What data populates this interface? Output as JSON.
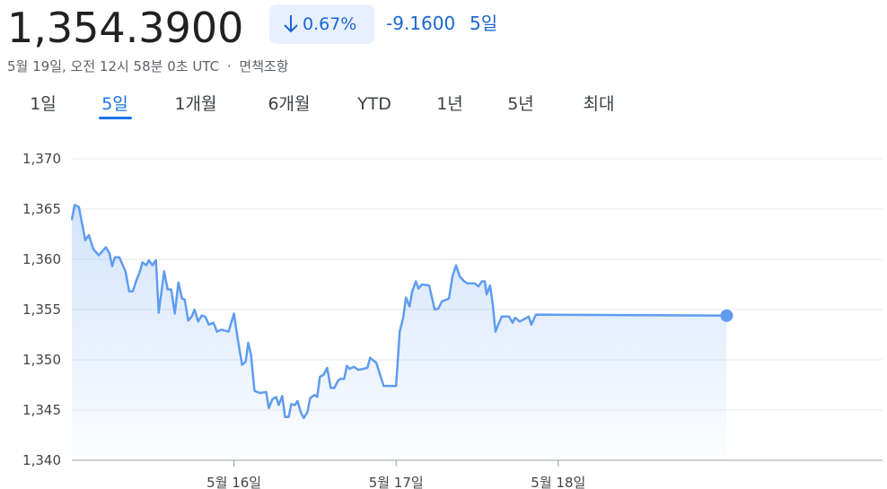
{
  "header": {
    "price": "1,354.3900",
    "change_pct": "0.67%",
    "change": "-9.1600",
    "period": "5일",
    "timestamp": "5월 19일, 오전 12시 58분 0초 UTC",
    "separator": "·",
    "disclaimer": "면책조항"
  },
  "tabs": {
    "items": [
      "1일",
      "5일",
      "1개월",
      "6개월",
      "YTD",
      "1년",
      "5년",
      "최대"
    ],
    "selected": 1
  },
  "chart_data": {
    "type": "line",
    "color": "#5f9cf0",
    "grid": true,
    "xlim": [
      15,
      20
    ],
    "xticks": [
      {
        "value": 16,
        "label": "5월 16일"
      },
      {
        "value": 17,
        "label": "5월 17일"
      },
      {
        "value": 18,
        "label": "5월 18일"
      }
    ],
    "ylim": [
      1340,
      1370
    ],
    "yticks": [
      {
        "value": 1340,
        "label": "1,340"
      },
      {
        "value": 1345,
        "label": "1,345"
      },
      {
        "value": 1350,
        "label": "1,350"
      },
      {
        "value": 1355,
        "label": "1,355"
      },
      {
        "value": 1360,
        "label": "1,360"
      },
      {
        "value": 1365,
        "label": "1,365"
      },
      {
        "value": 1370,
        "label": "1,370"
      }
    ],
    "x": [
      15.0,
      15.017,
      15.044,
      15.083,
      15.105,
      15.133,
      15.166,
      15.21,
      15.232,
      15.249,
      15.265,
      15.293,
      15.331,
      15.354,
      15.376,
      15.398,
      15.42,
      15.436,
      15.459,
      15.475,
      15.497,
      15.519,
      15.536,
      15.569,
      15.591,
      15.613,
      15.635,
      15.657,
      15.68,
      15.696,
      15.718,
      15.74,
      15.757,
      15.779,
      15.801,
      15.823,
      15.845,
      15.873,
      15.895,
      15.923,
      15.967,
      16.0,
      16.022,
      16.05,
      16.072,
      16.088,
      16.105,
      16.127,
      16.16,
      16.199,
      16.215,
      16.238,
      16.26,
      16.276,
      16.298,
      16.315,
      16.337,
      16.354,
      16.376,
      16.392,
      16.414,
      16.431,
      16.453,
      16.47,
      16.497,
      16.514,
      16.53,
      16.552,
      16.575,
      16.597,
      16.619,
      16.641,
      16.657,
      16.68,
      16.696,
      16.713,
      16.74,
      16.768,
      16.796,
      16.823,
      16.84,
      16.878,
      16.923,
      17.0,
      17.022,
      17.044,
      17.061,
      17.083,
      17.099,
      17.122,
      17.138,
      17.16,
      17.204,
      17.238,
      17.26,
      17.282,
      17.326,
      17.348,
      17.37,
      17.392,
      17.42,
      17.442,
      17.486,
      17.508,
      17.53,
      17.547,
      17.558,
      17.58,
      17.597,
      17.613,
      17.635,
      17.652,
      17.696,
      17.718,
      17.735,
      17.762,
      17.796,
      17.818,
      17.834,
      17.862,
      19.039
    ],
    "values": [
      1363.9,
      1365.4,
      1365.2,
      1361.9,
      1362.4,
      1361.0,
      1360.4,
      1361.2,
      1360.6,
      1359.3,
      1360.2,
      1360.2,
      1358.8,
      1356.8,
      1356.8,
      1357.9,
      1358.8,
      1359.7,
      1359.4,
      1359.9,
      1359.4,
      1359.9,
      1354.7,
      1358.8,
      1357.0,
      1357.0,
      1354.6,
      1357.7,
      1356.1,
      1356.0,
      1353.9,
      1354.3,
      1355.0,
      1353.8,
      1354.4,
      1354.3,
      1353.5,
      1353.7,
      1352.8,
      1353.0,
      1352.8,
      1354.6,
      1352.2,
      1349.5,
      1349.8,
      1351.7,
      1350.5,
      1346.9,
      1346.7,
      1346.8,
      1345.2,
      1346.1,
      1346.3,
      1345.5,
      1346.4,
      1344.3,
      1344.3,
      1345.6,
      1345.5,
      1345.9,
      1344.7,
      1344.2,
      1344.8,
      1346.2,
      1346.5,
      1346.3,
      1348.3,
      1348.5,
      1349.2,
      1347.2,
      1347.2,
      1347.9,
      1348.1,
      1348.1,
      1349.4,
      1349.1,
      1349.3,
      1349.0,
      1349.1,
      1349.2,
      1350.2,
      1349.7,
      1347.4,
      1347.4,
      1352.8,
      1354.2,
      1356.2,
      1355.3,
      1356.8,
      1357.8,
      1357.1,
      1357.5,
      1357.4,
      1355.0,
      1355.1,
      1355.8,
      1356.1,
      1358.3,
      1359.4,
      1358.3,
      1357.8,
      1357.6,
      1357.6,
      1357.3,
      1357.8,
      1357.8,
      1356.5,
      1357.4,
      1355.4,
      1352.8,
      1353.7,
      1354.3,
      1354.3,
      1353.7,
      1354.2,
      1353.8,
      1354.1,
      1354.3,
      1353.5,
      1354.5,
      1354.39
    ]
  }
}
